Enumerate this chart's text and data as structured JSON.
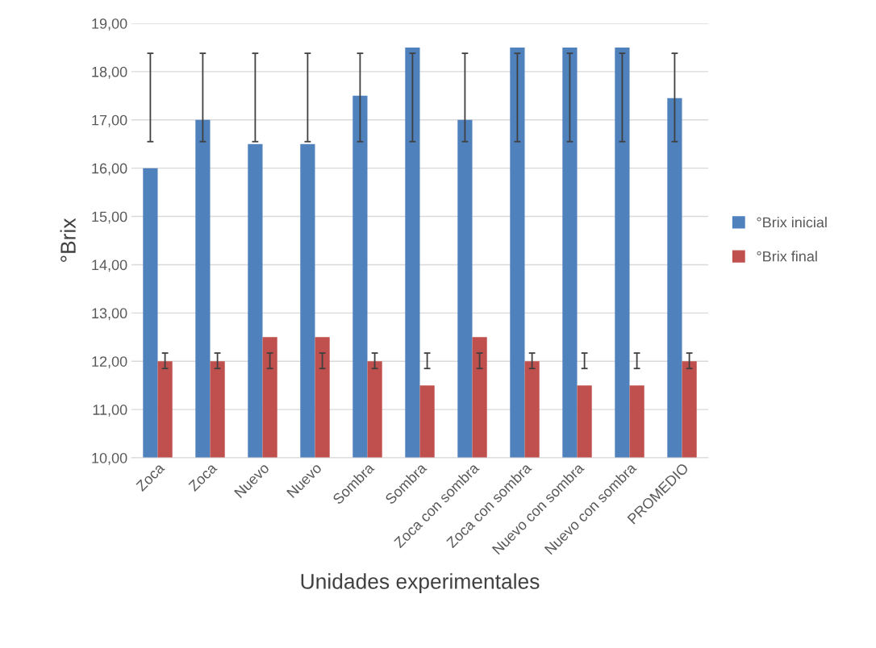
{
  "chart_data": {
    "type": "bar",
    "xlabel": "Unidades experimentales",
    "ylabel": "°Brix",
    "categories": [
      "Zoca",
      "Zoca",
      "Nuevo",
      "Nuevo",
      "Sombra",
      "Sombra",
      "Zoca con sombra",
      "Zoca con sombra",
      "Nuevo con sombra",
      "Nuevo con sombra",
      "PROMEDIO"
    ],
    "series": [
      {
        "name": "°Brix inicial",
        "color": "#4f81bd",
        "values": [
          16,
          17,
          16.5,
          16.5,
          17.5,
          18.5,
          17,
          18.5,
          18.5,
          18.5,
          17.45
        ],
        "errors": [
          [
            16.55,
            18.38
          ],
          [
            16.55,
            18.38
          ],
          [
            16.55,
            18.38
          ],
          [
            16.55,
            18.38
          ],
          [
            16.55,
            18.38
          ],
          [
            16.55,
            18.38
          ],
          [
            16.55,
            18.38
          ],
          [
            16.55,
            18.38
          ],
          [
            16.55,
            18.38
          ],
          [
            16.55,
            18.38
          ],
          [
            16.55,
            18.38
          ]
        ]
      },
      {
        "name": "°Brix final",
        "color": "#c0504d",
        "values": [
          12,
          12,
          12.5,
          12.5,
          12,
          11.5,
          12.5,
          12,
          11.5,
          11.5,
          12
        ],
        "errors": [
          [
            11.85,
            12.17
          ],
          [
            11.85,
            12.17
          ],
          [
            11.85,
            12.17
          ],
          [
            11.85,
            12.17
          ],
          [
            11.85,
            12.17
          ],
          [
            11.85,
            12.17
          ],
          [
            11.85,
            12.17
          ],
          [
            11.85,
            12.17
          ],
          [
            11.85,
            12.17
          ],
          [
            11.85,
            12.17
          ],
          [
            11.85,
            12.17
          ]
        ]
      }
    ],
    "ylim": [
      10,
      19
    ],
    "yticks": [
      {
        "value": 10,
        "label": "10,00"
      },
      {
        "value": 11,
        "label": "11,00"
      },
      {
        "value": 12,
        "label": "12,00"
      },
      {
        "value": 13,
        "label": "13,00"
      },
      {
        "value": 14,
        "label": "14,00"
      },
      {
        "value": 15,
        "label": "15,00"
      },
      {
        "value": 16,
        "label": "16,00"
      },
      {
        "value": 17,
        "label": "17,00"
      },
      {
        "value": 18,
        "label": "18,00"
      },
      {
        "value": 19,
        "label": "19,00"
      }
    ],
    "grid": "y",
    "legend": "right"
  }
}
